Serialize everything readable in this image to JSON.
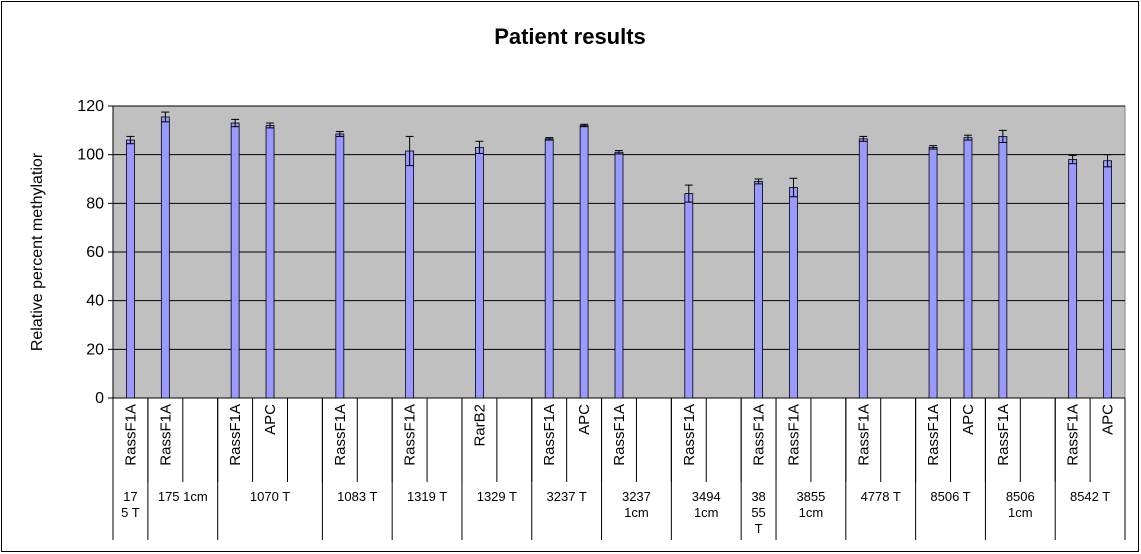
{
  "chart_data": {
    "type": "bar",
    "title": "Patient results",
    "y_label": "Relative percent methylatior",
    "color": "#9999ff",
    "plot_background": "#c0c0c0",
    "grid": true,
    "ylim": [
      0,
      120
    ],
    "yticks": [
      0,
      20,
      40,
      60,
      80,
      100,
      120
    ],
    "categories": [
      "RassF1A",
      "RassF1A",
      null,
      "RassF1A",
      "APC",
      null,
      "RassF1A",
      null,
      "RassF1A",
      null,
      "RarB2",
      null,
      "RassF1A",
      "APC",
      "RassF1A",
      null,
      "RassF1A",
      null,
      "RassF1A",
      "RassF1A",
      null,
      "RassF1A",
      null,
      "RassF1A",
      "APC",
      "RassF1A",
      null,
      "RassF1A",
      "APC"
    ],
    "values": [
      106,
      115.5,
      null,
      113,
      112,
      null,
      108.5,
      null,
      101.5,
      null,
      103,
      null,
      106.5,
      112,
      101,
      null,
      84,
      null,
      89,
      86.5,
      null,
      106.5,
      null,
      103,
      107,
      107.5,
      null,
      98,
      97.5
    ],
    "errors": [
      1.5,
      2,
      null,
      1.5,
      1,
      null,
      1,
      null,
      6,
      null,
      2.5,
      null,
      0.5,
      0.5,
      0.7,
      null,
      3.5,
      null,
      1,
      3.8,
      null,
      1,
      null,
      0.7,
      1,
      2.5,
      null,
      1.7,
      2.5
    ],
    "groups": [
      {
        "label": "175 T",
        "span": 1
      },
      {
        "label": "175 1cm",
        "span": 2
      },
      {
        "label": "1070 T",
        "span": 3
      },
      {
        "label": "1083 T",
        "span": 2
      },
      {
        "label": "1319 T",
        "span": 2
      },
      {
        "label": "1329 T",
        "span": 2
      },
      {
        "label": "3237 T",
        "span": 2
      },
      {
        "label": "3237 1cm",
        "span": 2
      },
      {
        "label": "3494 1cm",
        "span": 2
      },
      {
        "label": "3855 T",
        "span": 1
      },
      {
        "label": "3855 1cm",
        "span": 2
      },
      {
        "label": "4778 T",
        "span": 2
      },
      {
        "label": "8506 T",
        "span": 2
      },
      {
        "label": "8506 1cm",
        "span": 2
      },
      {
        "label": "8542 T",
        "span": 2
      }
    ]
  }
}
